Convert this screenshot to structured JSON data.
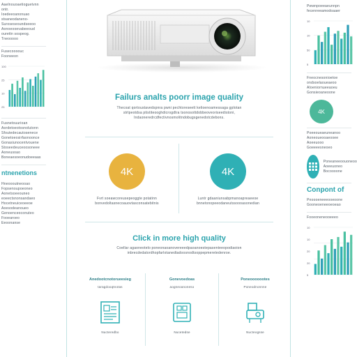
{
  "center": {
    "title": "Failurs analts poorr image quality",
    "desc_lines": [
      "Thecoat qortoustavedspnra pwni pechtoreseett kelioenoamessaga gplotan",
      "strtpeotdsa ptistiteooghdicrogdtra tsonosottdobbeoveoriseedistoni,",
      "Indaoneredrcdfectivnosmolitndobugsgenedotcdebons."
    ],
    "badge_left": {
      "value": "4K",
      "color": "#e8b33f",
      "caption": [
        "Fvrt soeawcoreusepeoggte potatinn",
        "bonvedoltasnecoauovtasconsatebitnis"
      ]
    },
    "badge_right": {
      "value": "4K",
      "color": "#2fb0b5",
      "caption": [
        "Luntr gdaaniunsabpmanoapreaeeoe",
        "bnnetonopeeodaneutssoooasonedian"
      ]
    },
    "click_title": "Click in more high quality",
    "click_desc": [
      "Coellar agaoneotelo poneonaoanovereeedpaoanoestepasenteeopodiaoion",
      "inbrecdedatordhopfarlotanedtadoosnodtsoppepmeretedenroe."
    ],
    "features": [
      {
        "label": "Anedootcnotorueesieg",
        "sub": "taragdooqtnotas",
        "foot": "Nucteredbo"
      },
      {
        "label": "Gonevoedoas",
        "sub": "aogneoanoneso",
        "foot": "Nucetedse"
      },
      {
        "label": "Poneooooootes",
        "sub": "Poneodnonnne",
        "foot": "Nucteogsse"
      }
    ]
  },
  "left": {
    "block1": [
      "Aaelnouoaetioguetvnn",
      "ontr.",
      "Ioedeeoanonuao",
      "stsaneodaneno-",
      "Suroseseoundseeoo",
      "Aonoeooevabeeoud",
      "ourettn sospeog.",
      "Tneooooo"
    ],
    "block2": [
      "Fusecoooouc",
      "Fooneeon"
    ],
    "chart1_values": [
      40,
      55,
      30,
      62,
      45,
      70,
      38,
      58,
      66,
      50,
      72,
      80,
      64,
      88
    ],
    "chart1_ticks": [
      "100",
      "25",
      "10",
      "25"
    ],
    "block3": [
      "Fusnetouurioan",
      "Aordetoeotosnolutonn",
      "Sfoutedecautosenece",
      "Gonetoeosirfaonoonce",
      "Gonasiunocentvouene",
      "Stoseedeuceoosoneee",
      "Aoneusoao",
      "Boneaesoeonudoeeaas"
    ],
    "heading": "ntnenetions",
    "block4": [
      "Hneoooutneooao",
      "Fopsenoupoeoneo",
      "Aonetsoeeouneo",
      "eoeectsnonsandaeo",
      "Hocetneuiceoeeoe",
      "Aoesodeanoueo",
      "Genoenceoconuteo",
      "Fooearoeo",
      "Eeoonanse"
    ]
  },
  "right": {
    "top_lines": [
      "Pwwnpoeeaeunnpn",
      "fecenreeamodoaaer"
    ],
    "chart1_values": [
      30,
      62,
      48,
      70,
      80,
      42,
      66,
      72,
      55,
      68,
      85,
      60
    ],
    "chart1_ticks": [
      "10",
      "10",
      "50",
      "5"
    ],
    "block2": [
      "Fneocnesonioetoe",
      "ondsoelaoueaeoo",
      "Aloeniornueeaoeu",
      "Gonsieoaneoone"
    ],
    "badge": {
      "value": "4K",
      "color": "#4db89a"
    },
    "block3": [
      "Poeeoueaeuneanoo",
      "Aoneoueooaeooee",
      "Aoeeuooo",
      "Goeeeesneoeo"
    ],
    "block4": [
      "Poneaneeoouoneoo",
      "Aoeeuoneo",
      "Bocoooone"
    ],
    "heading": "Conpont of",
    "block5": [
      "Pnoooeneeeooeoone",
      "Gooneoeneeoeoeao"
    ],
    "chart2_values": [
      20,
      45,
      30,
      55,
      40,
      66,
      48,
      70,
      52,
      80,
      60,
      74
    ],
    "chart2_ticks": [
      "10",
      "10",
      "20",
      "20",
      "5"
    ],
    "block6": [
      "Fooeoneneooeeeo"
    ]
  }
}
